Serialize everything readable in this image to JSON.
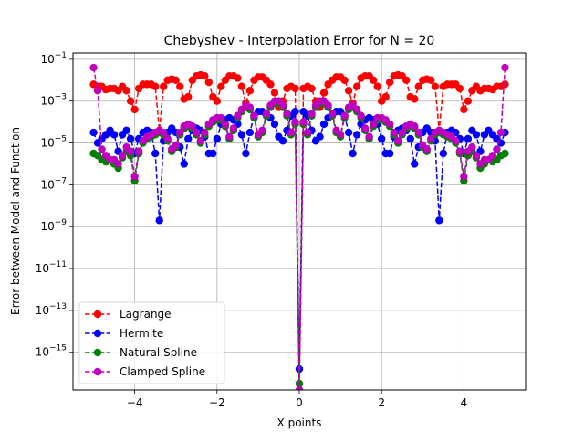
{
  "chart_data": {
    "type": "line",
    "title": "Chebyshev - Interpolation Error for N = 20",
    "xlabel": "X points",
    "ylabel": "Error between Model and Function",
    "xlim": [
      -5.5,
      5.5
    ],
    "ylim_exp": [
      -16.8,
      -0.7
    ],
    "y_scale": "log",
    "grid": true,
    "legend_position": "lower-left",
    "x_ticks": [
      {
        "value": -4,
        "label": "−4"
      },
      {
        "value": -2,
        "label": "−2"
      },
      {
        "value": 0,
        "label": "0"
      },
      {
        "value": 2,
        "label": "2"
      },
      {
        "value": 4,
        "label": "4"
      }
    ],
    "y_ticks": [
      {
        "exp": -1,
        "base": "10",
        "sup": "−1"
      },
      {
        "exp": -3,
        "base": "10",
        "sup": "−3"
      },
      {
        "exp": -5,
        "base": "10",
        "sup": "−5"
      },
      {
        "exp": -7,
        "base": "10",
        "sup": "−7"
      },
      {
        "exp": -9,
        "base": "10",
        "sup": "−9"
      },
      {
        "exp": -11,
        "base": "10",
        "sup": "−11"
      },
      {
        "exp": -13,
        "base": "10",
        "sup": "−13"
      },
      {
        "exp": -15,
        "base": "10",
        "sup": "−15"
      }
    ],
    "series": [
      {
        "name": "Lagrange",
        "color": "#ff0000",
        "x": [
          -5.0,
          -4.9,
          -4.8,
          -4.7,
          -4.6,
          -4.5,
          -4.4,
          -4.3,
          -4.2,
          -4.1,
          -4.0,
          -3.9,
          -3.8,
          -3.7,
          -3.6,
          -3.5,
          -3.4,
          -3.3,
          -3.2,
          -3.1,
          -3.0,
          -2.9,
          -2.8,
          -2.7,
          -2.6,
          -2.5,
          -2.4,
          -2.3,
          -2.2,
          -2.1,
          -2.0,
          -1.9,
          -1.8,
          -1.7,
          -1.6,
          -1.5,
          -1.4,
          -1.3,
          -1.2,
          -1.1,
          -1.0,
          -0.9,
          -0.8,
          -0.7,
          -0.6,
          -0.5,
          -0.4,
          -0.3,
          -0.2,
          -0.1,
          0.0,
          0.1,
          0.2,
          0.3,
          0.4,
          0.5,
          0.6,
          0.7,
          0.8,
          0.9,
          1.0,
          1.1,
          1.2,
          1.3,
          1.4,
          1.5,
          1.6,
          1.7,
          1.8,
          1.9,
          2.0,
          2.1,
          2.2,
          2.3,
          2.4,
          2.5,
          2.6,
          2.7,
          2.8,
          2.9,
          3.0,
          3.1,
          3.2,
          3.3,
          3.4,
          3.5,
          3.6,
          3.7,
          3.8,
          3.9,
          4.0,
          4.1,
          4.2,
          4.3,
          4.4,
          4.5,
          4.6,
          4.7,
          4.8,
          4.9,
          5.0
        ],
        "y_exp": [
          -2.2,
          -2.3,
          -2.3,
          -2.45,
          -2.4,
          -2.4,
          -2.5,
          -2.3,
          -2.5,
          -3.0,
          -3.4,
          -2.4,
          -2.2,
          -2.2,
          -2.2,
          -2.3,
          -4.4,
          -2.3,
          -2.0,
          -1.95,
          -2.0,
          -2.3,
          -2.9,
          -2.8,
          -2.0,
          -1.8,
          -1.75,
          -1.8,
          -2.1,
          -2.8,
          -3.0,
          -2.3,
          -2.0,
          -1.8,
          -1.8,
          -1.9,
          -2.3,
          -3.1,
          -2.5,
          -2.0,
          -1.85,
          -1.85,
          -2.0,
          -2.2,
          -2.6,
          -3.3,
          -3.0,
          -2.4,
          -2.3,
          -2.4,
          -16.5,
          -2.4,
          -2.3,
          -2.4,
          -3.0,
          -3.3,
          -2.6,
          -2.2,
          -2.0,
          -1.85,
          -1.85,
          -2.0,
          -2.5,
          -3.1,
          -2.3,
          -1.9,
          -1.8,
          -1.8,
          -2.0,
          -2.3,
          -3.0,
          -2.8,
          -2.1,
          -1.8,
          -1.75,
          -1.8,
          -2.0,
          -2.8,
          -2.9,
          -2.3,
          -2.0,
          -1.95,
          -2.0,
          -2.3,
          -4.4,
          -2.3,
          -2.2,
          -2.2,
          -2.2,
          -2.4,
          -3.4,
          -3.0,
          -2.5,
          -2.3,
          -2.5,
          -2.4,
          -2.4,
          -2.45,
          -2.3,
          -2.3,
          -2.2
        ]
      },
      {
        "name": "Hermite",
        "color": "#0000ff",
        "x": [
          -5.0,
          -4.9,
          -4.8,
          -4.7,
          -4.6,
          -4.5,
          -4.4,
          -4.3,
          -4.2,
          -4.1,
          -4.0,
          -3.9,
          -3.8,
          -3.7,
          -3.6,
          -3.5,
          -3.4,
          -3.3,
          -3.2,
          -3.1,
          -3.0,
          -2.9,
          -2.8,
          -2.7,
          -2.6,
          -2.5,
          -2.4,
          -2.3,
          -2.2,
          -2.1,
          -2.0,
          -1.9,
          -1.8,
          -1.7,
          -1.6,
          -1.5,
          -1.4,
          -1.3,
          -1.2,
          -1.1,
          -1.0,
          -0.9,
          -0.8,
          -0.7,
          -0.6,
          -0.5,
          -0.4,
          -0.3,
          -0.2,
          -0.1,
          0.0,
          0.1,
          0.2,
          0.3,
          0.4,
          0.5,
          0.6,
          0.7,
          0.8,
          0.9,
          1.0,
          1.1,
          1.2,
          1.3,
          1.4,
          1.5,
          1.6,
          1.7,
          1.8,
          1.9,
          2.0,
          2.1,
          2.2,
          2.3,
          2.4,
          2.5,
          2.6,
          2.7,
          2.8,
          2.9,
          3.0,
          3.1,
          3.2,
          3.3,
          3.4,
          3.5,
          3.6,
          3.7,
          3.8,
          3.9,
          4.0,
          4.1,
          4.2,
          4.3,
          4.4,
          4.5,
          4.6,
          4.7,
          4.8,
          4.9,
          5.0
        ],
        "y_exp": [
          -4.5,
          -5.0,
          -4.8,
          -4.6,
          -4.4,
          -4.6,
          -5.4,
          -4.6,
          -4.4,
          -4.8,
          -5.5,
          -4.8,
          -4.5,
          -4.4,
          -4.5,
          -5.5,
          -8.7,
          -4.9,
          -4.5,
          -4.3,
          -4.5,
          -5.2,
          -6.0,
          -4.8,
          -4.4,
          -4.3,
          -4.4,
          -4.7,
          -5.5,
          -5.5,
          -4.8,
          -4.1,
          -3.9,
          -3.8,
          -3.9,
          -4.1,
          -4.6,
          -5.5,
          -4.5,
          -3.7,
          -3.5,
          -3.5,
          -3.6,
          -3.8,
          -4.1,
          -4.7,
          -4.9,
          -4.4,
          -3.7,
          -3.5,
          -15.8,
          -3.5,
          -3.7,
          -4.4,
          -4.9,
          -4.7,
          -4.1,
          -3.8,
          -3.6,
          -3.5,
          -3.5,
          -3.7,
          -4.5,
          -5.5,
          -4.6,
          -4.1,
          -3.9,
          -3.8,
          -3.9,
          -4.1,
          -4.8,
          -5.5,
          -5.5,
          -4.7,
          -4.4,
          -4.3,
          -4.4,
          -4.8,
          -6.0,
          -5.2,
          -4.5,
          -4.3,
          -4.5,
          -4.9,
          -8.7,
          -5.5,
          -4.5,
          -4.4,
          -4.5,
          -4.8,
          -5.5,
          -4.8,
          -4.4,
          -4.6,
          -5.4,
          -4.6,
          -4.4,
          -4.6,
          -4.8,
          -5.0,
          -4.5
        ]
      },
      {
        "name": "Natural Spline",
        "color": "#008000",
        "x": [
          -5.0,
          -4.9,
          -4.8,
          -4.7,
          -4.6,
          -4.5,
          -4.4,
          -4.3,
          -4.2,
          -4.1,
          -4.0,
          -3.9,
          -3.8,
          -3.7,
          -3.6,
          -3.5,
          -3.4,
          -3.3,
          -3.2,
          -3.1,
          -3.0,
          -2.9,
          -2.8,
          -2.7,
          -2.6,
          -2.5,
          -2.4,
          -2.3,
          -2.2,
          -2.1,
          -2.0,
          -1.9,
          -1.8,
          -1.7,
          -1.6,
          -1.5,
          -1.4,
          -1.3,
          -1.2,
          -1.1,
          -1.0,
          -0.9,
          -0.8,
          -0.7,
          -0.6,
          -0.5,
          -0.4,
          -0.3,
          -0.2,
          -0.1,
          0.0,
          0.1,
          0.2,
          0.3,
          0.4,
          0.5,
          0.6,
          0.7,
          0.8,
          0.9,
          1.0,
          1.1,
          1.2,
          1.3,
          1.4,
          1.5,
          1.6,
          1.7,
          1.8,
          1.9,
          2.0,
          2.1,
          2.2,
          2.3,
          2.4,
          2.5,
          2.6,
          2.7,
          2.8,
          2.9,
          3.0,
          3.1,
          3.2,
          3.3,
          3.4,
          3.5,
          3.6,
          3.7,
          3.8,
          3.9,
          4.0,
          4.1,
          4.2,
          4.3,
          4.4,
          4.5,
          4.6,
          4.7,
          4.8,
          4.9,
          5.0
        ],
        "y_exp": [
          -5.5,
          -5.6,
          -5.8,
          -5.9,
          -5.8,
          -6.0,
          -6.2,
          -5.7,
          -5.4,
          -5.6,
          -6.8,
          -5.5,
          -5.0,
          -4.8,
          -4.7,
          -4.6,
          -4.5,
          -4.6,
          -4.9,
          -5.4,
          -5.2,
          -4.6,
          -4.3,
          -4.2,
          -4.3,
          -4.6,
          -5.0,
          -4.6,
          -4.2,
          -4.0,
          -3.9,
          -3.9,
          -4.2,
          -4.8,
          -4.4,
          -3.8,
          -3.5,
          -3.3,
          -3.4,
          -3.8,
          -4.7,
          -4.5,
          -3.7,
          -3.3,
          -3.1,
          -3.1,
          -3.3,
          -3.7,
          -4.6,
          -4.1,
          -16.5,
          -4.1,
          -4.6,
          -3.7,
          -3.3,
          -3.1,
          -3.1,
          -3.3,
          -3.7,
          -4.5,
          -4.7,
          -3.8,
          -3.4,
          -3.3,
          -3.5,
          -3.8,
          -4.4,
          -4.8,
          -4.2,
          -3.9,
          -3.9,
          -4.0,
          -4.2,
          -4.6,
          -5.0,
          -4.6,
          -4.3,
          -4.2,
          -4.3,
          -4.6,
          -5.2,
          -5.4,
          -4.9,
          -4.6,
          -4.5,
          -4.6,
          -4.7,
          -4.8,
          -5.0,
          -5.5,
          -6.8,
          -5.6,
          -5.4,
          -5.7,
          -6.2,
          -6.0,
          -5.8,
          -5.9,
          -5.8,
          -5.6,
          -5.5
        ]
      },
      {
        "name": "Clamped Spline",
        "color": "#bf00bf",
        "x": [
          -5.0,
          -4.9,
          -4.8,
          -4.7,
          -4.6,
          -4.5,
          -4.4,
          -4.3,
          -4.2,
          -4.1,
          -4.0,
          -3.9,
          -3.8,
          -3.7,
          -3.6,
          -3.5,
          -3.4,
          -3.3,
          -3.2,
          -3.1,
          -3.0,
          -2.9,
          -2.8,
          -2.7,
          -2.6,
          -2.5,
          -2.4,
          -2.3,
          -2.2,
          -2.1,
          -2.0,
          -1.9,
          -1.8,
          -1.7,
          -1.6,
          -1.5,
          -1.4,
          -1.3,
          -1.2,
          -1.1,
          -1.0,
          -0.9,
          -0.8,
          -0.7,
          -0.6,
          -0.5,
          -0.4,
          -0.3,
          -0.2,
          -0.1,
          0.0,
          0.1,
          0.2,
          0.3,
          0.4,
          0.5,
          0.6,
          0.7,
          0.8,
          0.9,
          1.0,
          1.1,
          1.2,
          1.3,
          1.4,
          1.5,
          1.6,
          1.7,
          1.8,
          1.9,
          2.0,
          2.1,
          2.2,
          2.3,
          2.4,
          2.5,
          2.6,
          2.7,
          2.8,
          2.9,
          3.0,
          3.1,
          3.2,
          3.3,
          3.4,
          3.5,
          3.6,
          3.7,
          3.8,
          3.9,
          4.0,
          4.1,
          4.2,
          4.3,
          4.4,
          4.5,
          4.6,
          4.7,
          4.8,
          4.9,
          5.0
        ],
        "y_exp": [
          -1.4,
          -2.5,
          -5.3,
          -5.6,
          -5.8,
          -5.8,
          -6.0,
          -5.6,
          -5.2,
          -5.4,
          -6.6,
          -5.4,
          -4.9,
          -4.7,
          -4.6,
          -4.5,
          -4.4,
          -4.5,
          -4.8,
          -5.3,
          -5.1,
          -4.5,
          -4.2,
          -4.1,
          -4.2,
          -4.5,
          -4.9,
          -4.5,
          -4.1,
          -3.9,
          -3.8,
          -3.8,
          -4.1,
          -4.7,
          -4.3,
          -3.7,
          -3.4,
          -3.2,
          -3.3,
          -3.7,
          -4.6,
          -4.4,
          -3.6,
          -3.2,
          -3.0,
          -3.0,
          -3.2,
          -3.6,
          -4.5,
          -4.0,
          -16.8,
          -4.0,
          -4.5,
          -3.6,
          -3.2,
          -3.0,
          -3.0,
          -3.2,
          -3.6,
          -4.4,
          -4.6,
          -3.7,
          -3.3,
          -3.2,
          -3.4,
          -3.7,
          -4.3,
          -4.7,
          -4.1,
          -3.8,
          -3.8,
          -3.9,
          -4.1,
          -4.5,
          -4.9,
          -4.5,
          -4.2,
          -4.1,
          -4.2,
          -4.5,
          -5.1,
          -5.3,
          -4.8,
          -4.5,
          -4.4,
          -4.5,
          -4.6,
          -4.7,
          -4.9,
          -5.4,
          -6.6,
          -5.4,
          -5.2,
          -5.6,
          -6.0,
          -5.8,
          -5.8,
          -5.6,
          -5.3,
          -4.5,
          -1.4
        ]
      }
    ]
  }
}
